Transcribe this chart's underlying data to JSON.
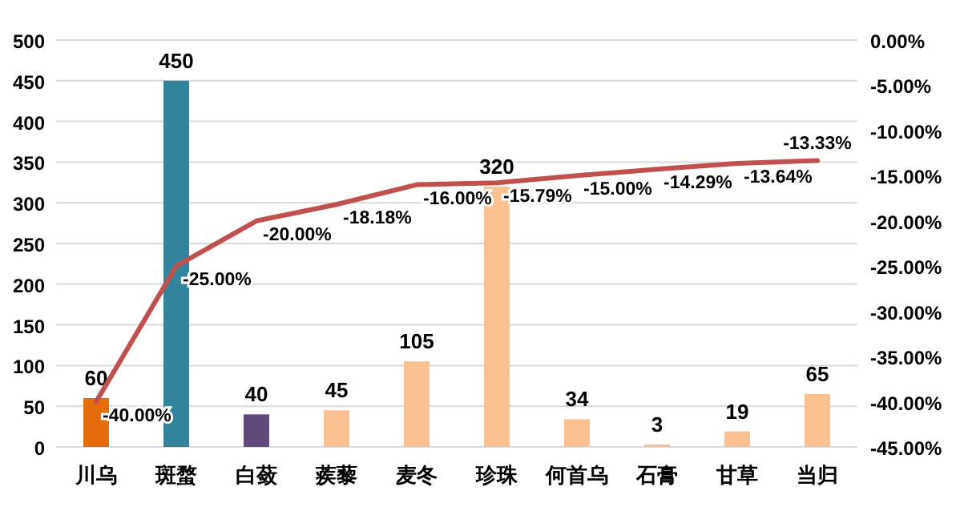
{
  "chart_data": {
    "type": "bar",
    "categories": [
      "川乌",
      "斑蝥",
      "白蔹",
      "蒺藜",
      "麦冬",
      "珍珠",
      "何首乌",
      "石膏",
      "甘草",
      "当归"
    ],
    "series": [
      {
        "colors": [
          "#e46c0a",
          "#31849b",
          "#604a7b",
          "#fac090",
          "#fac090",
          "#fac090",
          "#fac090",
          "#fac090",
          "#fac090",
          "#fac090"
        ],
        "values": [
          60,
          450,
          40,
          45,
          105,
          320,
          34,
          3,
          19,
          65
        ]
      },
      {
        "type": "line",
        "axis": "y2",
        "color": "#c0504d",
        "values": [
          -40,
          -25,
          -20,
          -18.18,
          -16,
          -15.79,
          -15,
          -14.29,
          -13.64,
          -13.33
        ],
        "value_labels": [
          "-40.00%",
          "-25.00%",
          "-20.00%",
          "-18.18%",
          "-16.00%",
          "-15.79%",
          "-15.00%",
          "-14.29%",
          "-13.64%",
          "-13.33%"
        ]
      }
    ],
    "data_labels": true,
    "grid": "y",
    "marker": "none",
    "ylim": [
      0,
      500
    ],
    "yticks": [
      0,
      50,
      100,
      150,
      200,
      250,
      300,
      350,
      400,
      450,
      500
    ],
    "y2lim": [
      -45,
      0
    ],
    "y2ticks": [
      {
        "value": 0,
        "label": "0.00%"
      },
      {
        "value": -5,
        "label": "-5.00%"
      },
      {
        "value": -10,
        "label": "-10.00%"
      },
      {
        "value": -15,
        "label": "-15.00%"
      },
      {
        "value": -20,
        "label": "-20.00%"
      },
      {
        "value": -25,
        "label": "-25.00%"
      },
      {
        "value": -30,
        "label": "-30.00%"
      },
      {
        "value": -35,
        "label": "-35.00%"
      },
      {
        "value": -40,
        "label": "-40.00%"
      },
      {
        "value": -45,
        "label": "-45.00%"
      }
    ]
  }
}
